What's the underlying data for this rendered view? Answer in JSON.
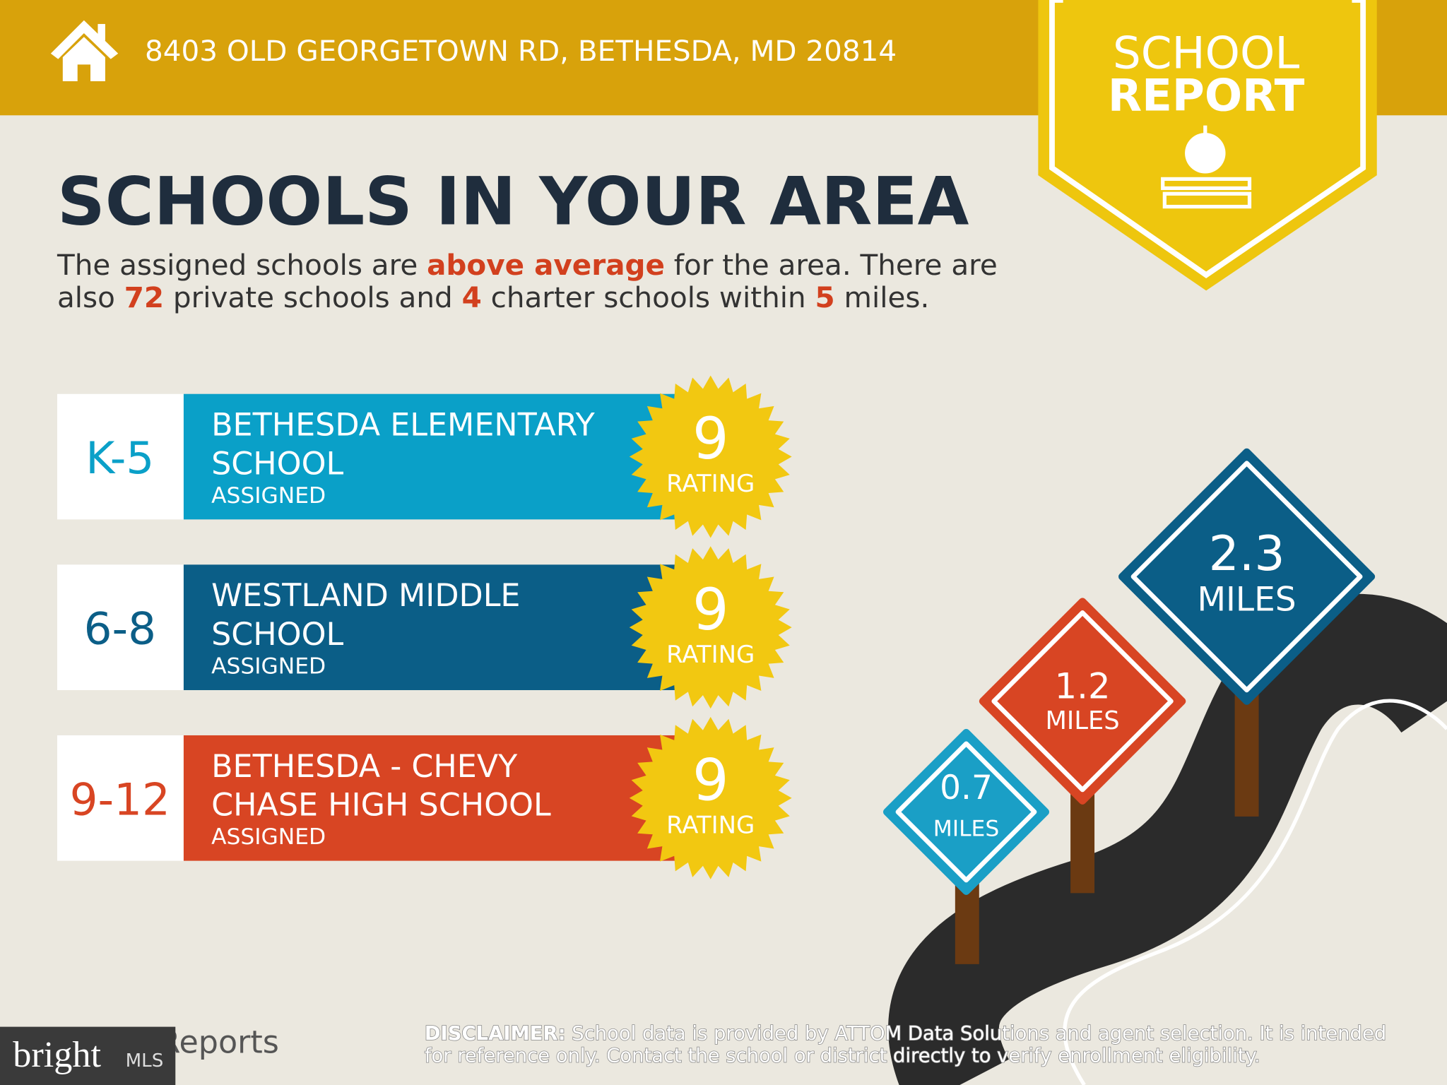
{
  "header": {
    "address": "8403 OLD GEORGETOWN RD, BETHESDA, MD 20814"
  },
  "badge": {
    "lines": [
      "SCHOOL",
      "REPORT"
    ]
  },
  "title": "SCHOOLS IN YOUR AREA",
  "intro": {
    "lines": [
      [
        {
          "text": "The assigned schools are "
        },
        {
          "text": "above average",
          "emphasis": true
        },
        {
          "text": " for the area. There are"
        }
      ],
      [
        {
          "text": "also "
        },
        {
          "text": "72",
          "emphasis": true
        },
        {
          "text": " private schools and "
        },
        {
          "text": "4",
          "emphasis": true
        },
        {
          "text": " charter schools within "
        },
        {
          "text": "5",
          "emphasis": true
        },
        {
          "text": " miles."
        }
      ]
    ]
  },
  "schools": [
    {
      "grade": "K-5",
      "name": [
        "BETHESDA ELEMENTARY",
        "SCHOOL"
      ],
      "status": "ASSIGNED",
      "rating": "9",
      "rating_label": "RATING",
      "color": "#0aa0c8"
    },
    {
      "grade": "6-8",
      "name": [
        "WESTLAND MIDDLE",
        "SCHOOL"
      ],
      "status": "ASSIGNED",
      "rating": "9",
      "rating_label": "RATING",
      "color": "#0b5e87"
    },
    {
      "grade": "9-12",
      "name": [
        "BETHESDA - CHEVY",
        "CHASE HIGH SCHOOL"
      ],
      "status": "ASSIGNED",
      "rating": "9",
      "rating_label": "RATING",
      "color": "#d84523"
    }
  ],
  "signs": [
    {
      "distance": "0.7",
      "unit": "MILES",
      "color": "#1a9fc6"
    },
    {
      "distance": "1.2",
      "unit": "MILES",
      "color": "#d84523"
    },
    {
      "distance": "2.3",
      "unit": "MILES",
      "color": "#0b5e87"
    }
  ],
  "footer": {
    "logo": "bright",
    "logo_suffix": "MLS",
    "reports": "Reports",
    "disclaimer": {
      "label": "DISCLAIMER:",
      "lines": [
        " School data is provided by ATTOM Data Solutions and agent selection. It is intended",
        "for reference only. Contact the school or district directly to verify enrollment eligibility."
      ]
    }
  }
}
